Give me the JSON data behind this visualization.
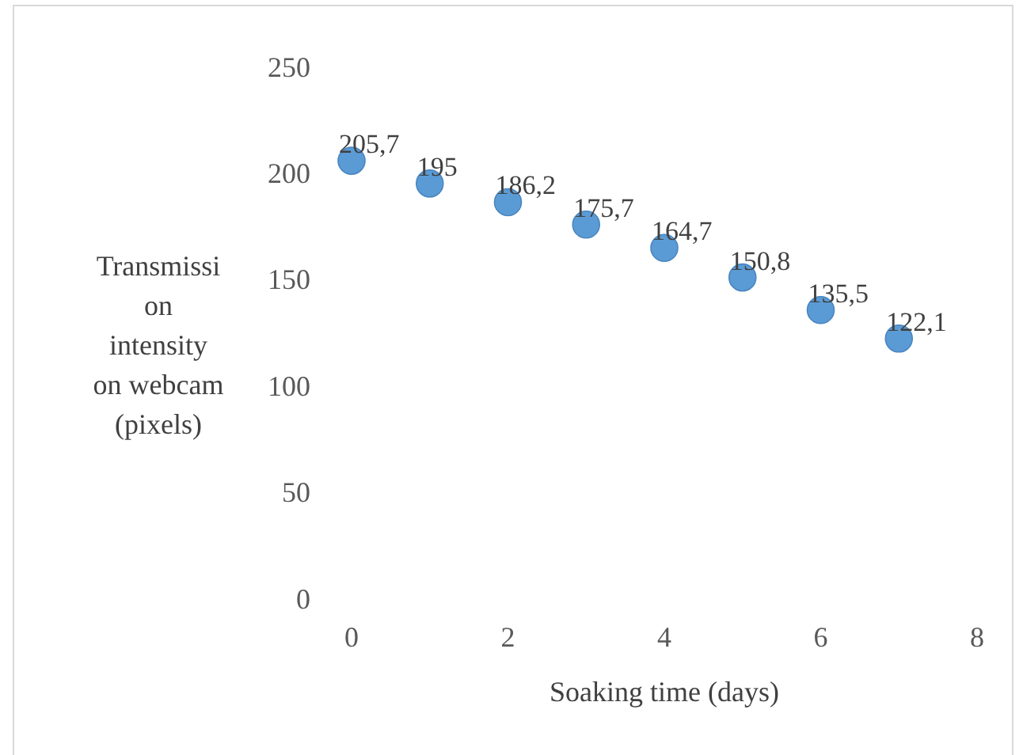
{
  "chart_data": {
    "type": "scatter",
    "xlabel": "Soaking time (days)",
    "ylabel": "Transmission intensity on webcam (pixels)",
    "x": [
      0,
      1,
      2,
      3,
      4,
      5,
      6,
      7
    ],
    "series": [
      {
        "color": "#5b9bd5",
        "values": [
          205.7,
          195,
          186.2,
          175.7,
          164.7,
          150.8,
          135.5,
          122.1
        ],
        "value_labels": [
          "205,7",
          "195",
          "186,2",
          "175,7",
          "164,7",
          "150,8",
          "135,5",
          "122,1"
        ]
      }
    ],
    "xlim": [
      0,
      8
    ],
    "xticks": [
      0,
      2,
      4,
      6,
      8
    ],
    "ylim": [
      0,
      250
    ],
    "yticks": [
      0,
      50,
      100,
      150,
      200,
      250
    ],
    "grid": false,
    "marker": "circle"
  }
}
